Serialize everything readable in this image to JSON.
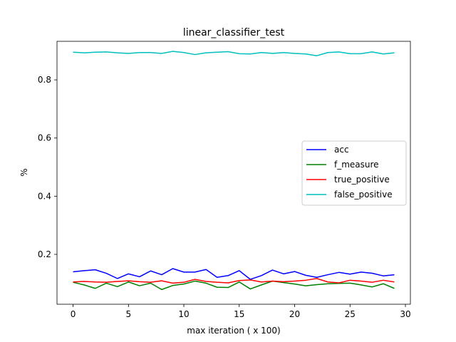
{
  "chart_data": {
    "type": "line",
    "title": "linear_classifier_test",
    "xlabel": "max iteration ( x 100)",
    "ylabel": "%",
    "xlim": [
      -1.45,
      30.45
    ],
    "ylim": [
      0.0285,
      0.9325
    ],
    "xticks": [
      0,
      5,
      10,
      15,
      20,
      25,
      30
    ],
    "yticks": [
      0.2,
      0.4,
      0.6,
      0.8
    ],
    "xtick_labels": [
      "0",
      "5",
      "10",
      "15",
      "20",
      "25",
      "30"
    ],
    "ytick_labels": [
      "0.2",
      "0.4",
      "0.6",
      "0.8"
    ],
    "grid": false,
    "legend_position": "center-right",
    "x": [
      0,
      1,
      2,
      3,
      4,
      5,
      6,
      7,
      8,
      9,
      10,
      11,
      12,
      13,
      14,
      15,
      16,
      17,
      18,
      19,
      20,
      21,
      22,
      23,
      24,
      25,
      26,
      27,
      28,
      29
    ],
    "series": [
      {
        "name": "acc",
        "color": "#0000ff",
        "values": [
          0.14,
          0.144,
          0.147,
          0.135,
          0.117,
          0.133,
          0.123,
          0.143,
          0.13,
          0.151,
          0.139,
          0.139,
          0.148,
          0.121,
          0.127,
          0.144,
          0.114,
          0.127,
          0.146,
          0.133,
          0.141,
          0.128,
          0.121,
          0.13,
          0.138,
          0.132,
          0.139,
          0.135,
          0.126,
          0.13
        ]
      },
      {
        "name": "f_measure",
        "color": "#008000",
        "values": [
          0.104,
          0.095,
          0.083,
          0.101,
          0.089,
          0.105,
          0.092,
          0.101,
          0.079,
          0.093,
          0.098,
          0.108,
          0.101,
          0.087,
          0.086,
          0.105,
          0.081,
          0.095,
          0.108,
          0.103,
          0.098,
          0.092,
          0.096,
          0.099,
          0.1,
          0.101,
          0.095,
          0.088,
          0.099,
          0.083
        ]
      },
      {
        "name": "true_positive",
        "color": "#ff0000",
        "values": [
          0.105,
          0.107,
          0.105,
          0.104,
          0.107,
          0.109,
          0.106,
          0.104,
          0.109,
          0.101,
          0.104,
          0.114,
          0.107,
          0.104,
          0.102,
          0.11,
          0.112,
          0.105,
          0.108,
          0.106,
          0.108,
          0.111,
          0.117,
          0.105,
          0.102,
          0.111,
          0.108,
          0.104,
          0.111,
          0.105
        ]
      },
      {
        "name": "false_positive",
        "color": "#00bfbf",
        "values": [
          0.895,
          0.893,
          0.895,
          0.896,
          0.893,
          0.891,
          0.894,
          0.894,
          0.891,
          0.898,
          0.894,
          0.887,
          0.893,
          0.895,
          0.897,
          0.89,
          0.889,
          0.894,
          0.891,
          0.894,
          0.891,
          0.889,
          0.883,
          0.894,
          0.896,
          0.89,
          0.89,
          0.896,
          0.889,
          0.893
        ]
      }
    ]
  }
}
